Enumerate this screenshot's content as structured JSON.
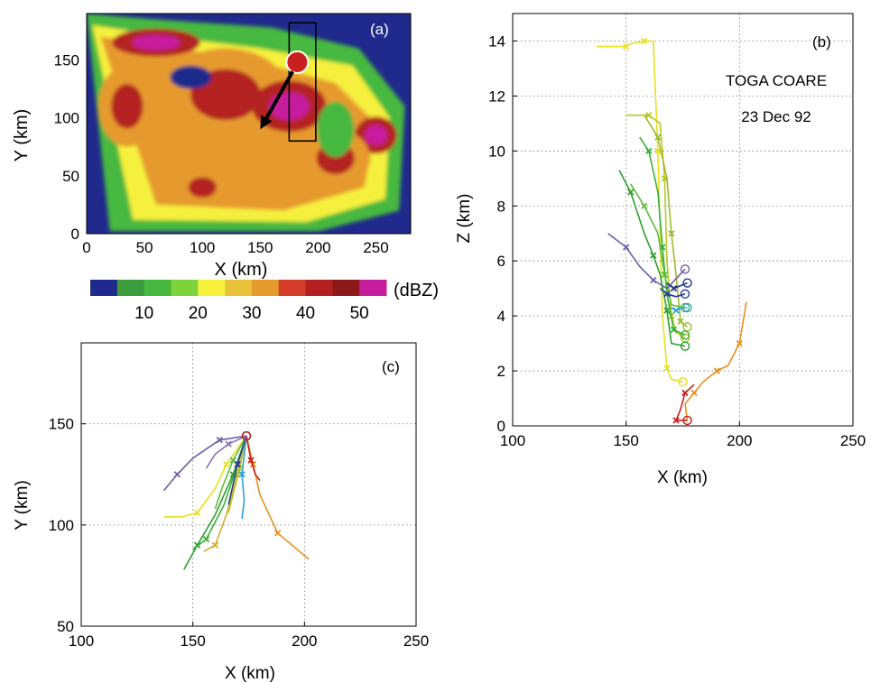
{
  "chart_data": [
    {
      "panel": "(a)",
      "type": "heatmap",
      "xlabel": "X (km)",
      "ylabel": "Y (km)",
      "xlim": [
        0,
        280
      ],
      "ylim": [
        0,
        190
      ],
      "xticks": [
        0,
        50,
        100,
        150,
        200,
        250
      ],
      "yticks": [
        0,
        50,
        100,
        150
      ],
      "colorbar": {
        "unit": "(dBZ)",
        "ticks": [
          10,
          20,
          30,
          40,
          50
        ],
        "colors": [
          "#1f2a8c",
          "#3d9a3d",
          "#46b83f",
          "#7ed23c",
          "#f5f03c",
          "#e8c33a",
          "#e69a2e",
          "#d23c28",
          "#b42020",
          "#8c1818",
          "#c81e9e"
        ]
      },
      "box": {
        "x0": 175,
        "x1": 198,
        "y0": 80,
        "y1": 182
      },
      "marker": {
        "x": 182,
        "y": 148,
        "color": "#c8201e"
      },
      "arrow": {
        "from": [
          178,
          140
        ],
        "to": [
          150,
          90
        ]
      },
      "cells": [
        {
          "x": 120,
          "y": 120,
          "rx": 55,
          "ry": 40,
          "dbz": 40
        },
        {
          "x": 175,
          "y": 110,
          "rx": 32,
          "ry": 22,
          "dbz": 50
        },
        {
          "x": 60,
          "y": 165,
          "rx": 38,
          "ry": 12,
          "dbz": 50
        },
        {
          "x": 35,
          "y": 110,
          "rx": 25,
          "ry": 35,
          "dbz": 40
        },
        {
          "x": 250,
          "y": 85,
          "rx": 18,
          "ry": 16,
          "dbz": 50
        },
        {
          "x": 215,
          "y": 65,
          "rx": 30,
          "ry": 25,
          "dbz": 40
        },
        {
          "x": 100,
          "y": 40,
          "rx": 22,
          "ry": 16,
          "dbz": 40
        }
      ]
    },
    {
      "panel": "(b)",
      "type": "line",
      "xlabel": "X (km)",
      "ylabel": "Z (km)",
      "xlim": [
        100,
        250
      ],
      "ylim": [
        0,
        15
      ],
      "xticks": [
        100,
        150,
        200,
        250
      ],
      "yticks": [
        0,
        2,
        4,
        6,
        8,
        10,
        12,
        14
      ],
      "grid": true,
      "annotations": [
        "TOGA COARE",
        "23 Dec 92"
      ],
      "series": [
        {
          "color": "#e8e020",
          "points": [
            [
              137,
              13.8
            ],
            [
              150,
              13.8
            ],
            [
              152,
              13.9
            ],
            [
              158,
              14
            ],
            [
              162,
              14
            ],
            [
              164,
              10
            ],
            [
              166,
              4
            ],
            [
              168,
              2.1
            ],
            [
              170,
              1.7
            ],
            [
              175,
              1.6
            ]
          ]
        },
        {
          "color": "#b8c820",
          "points": [
            [
              150,
              11.3
            ],
            [
              160,
              11.3
            ],
            [
              165,
              11.0
            ],
            [
              167,
              9
            ],
            [
              168,
              6
            ],
            [
              170,
              4
            ],
            [
              172,
              3.4
            ],
            [
              176,
              3.2
            ]
          ]
        },
        {
          "color": "#9cbc30",
          "points": [
            [
              158,
              11.3
            ],
            [
              164,
              10.5
            ],
            [
              168,
              9
            ],
            [
              170,
              7
            ],
            [
              172,
              5.5
            ],
            [
              174,
              3.8
            ],
            [
              177,
              3.6
            ]
          ]
        },
        {
          "color": "#2ca02c",
          "points": [
            [
              147,
              9.3
            ],
            [
              152,
              8.5
            ],
            [
              158,
              7
            ],
            [
              162,
              6.2
            ],
            [
              165,
              5.5
            ],
            [
              168,
              4.2
            ],
            [
              170,
              3.0
            ],
            [
              176,
              2.9
            ]
          ]
        },
        {
          "color": "#3ab03a",
          "points": [
            [
              156,
              10.5
            ],
            [
              160,
              10
            ],
            [
              164,
              8.5
            ],
            [
              166,
              6.5
            ],
            [
              168,
              4.8
            ],
            [
              171,
              3.5
            ],
            [
              176,
              3.3
            ]
          ]
        },
        {
          "color": "#5cbc3c",
          "points": [
            [
              152,
              8.8
            ],
            [
              158,
              8.0
            ],
            [
              164,
              7.0
            ],
            [
              167,
              5.5
            ],
            [
              170,
              4.4
            ],
            [
              176,
              4.3
            ]
          ]
        },
        {
          "color": "#6b5fa8",
          "points": [
            [
              142,
              7.0
            ],
            [
              150,
              6.5
            ],
            [
              156,
              5.8
            ],
            [
              162,
              5.3
            ],
            [
              168,
              5.0
            ],
            [
              176,
              5.7
            ]
          ]
        },
        {
          "color": "#2a3a9c",
          "points": [
            [
              165,
              5.0
            ],
            [
              168,
              4.8
            ],
            [
              172,
              4.7
            ],
            [
              176,
              4.8
            ]
          ]
        },
        {
          "color": "#1c3688",
          "points": [
            [
              168,
              5.2
            ],
            [
              171,
              5.0
            ],
            [
              174,
              5.1
            ],
            [
              177,
              5.2
            ]
          ]
        },
        {
          "color": "#30a0d8",
          "points": [
            [
              170,
              4.3
            ],
            [
              172,
              4.2
            ],
            [
              175,
              4.3
            ],
            [
              177,
              4.3
            ]
          ]
        },
        {
          "color": "#e89020",
          "points": [
            [
              203,
              4.5
            ],
            [
              200,
              3.0
            ],
            [
              195,
              2.2
            ],
            [
              190,
              2.0
            ],
            [
              184,
              1.6
            ],
            [
              180,
              1.2
            ],
            [
              176,
              0.8
            ],
            [
              177,
              0.2
            ]
          ]
        },
        {
          "color": "#c82020",
          "points": [
            [
              180,
              1.5
            ],
            [
              176,
              1.2
            ],
            [
              174,
              0.6
            ],
            [
              172,
              0.2
            ],
            [
              177,
              0.2
            ]
          ]
        }
      ]
    },
    {
      "panel": "(c)",
      "type": "line",
      "xlabel": "X (km)",
      "ylabel": "Y (km)",
      "xlim": [
        100,
        250
      ],
      "ylim": [
        50,
        190
      ],
      "xticks": [
        100,
        150,
        200,
        250
      ],
      "yticks": [
        50,
        100,
        150
      ],
      "grid": true,
      "series": [
        {
          "color": "#e8e020",
          "points": [
            [
              174,
              144
            ],
            [
              165,
              130
            ],
            [
              160,
              118
            ],
            [
              152,
              106
            ],
            [
              145,
              104
            ],
            [
              137,
              104
            ]
          ]
        },
        {
          "color": "#e89020",
          "points": [
            [
              174,
              144
            ],
            [
              177,
              130
            ],
            [
              180,
              115
            ],
            [
              188,
              96
            ],
            [
              202,
              83
            ]
          ]
        },
        {
          "color": "#d0b030",
          "points": [
            [
              174,
              144
            ],
            [
              170,
              125
            ],
            [
              165,
              105
            ],
            [
              160,
              90
            ],
            [
              155,
              87
            ]
          ]
        },
        {
          "color": "#2ca02c",
          "points": [
            [
              174,
              144
            ],
            [
              168,
              125
            ],
            [
              160,
              105
            ],
            [
              152,
              90
            ],
            [
              146,
              78
            ]
          ]
        },
        {
          "color": "#3ab03a",
          "points": [
            [
              174,
              144
            ],
            [
              170,
              130
            ],
            [
              164,
              110
            ],
            [
              156,
              93
            ],
            [
              150,
              88
            ]
          ]
        },
        {
          "color": "#5cbc3c",
          "points": [
            [
              174,
              144
            ],
            [
              168,
              132
            ],
            [
              163,
              118
            ],
            [
              160,
              108
            ]
          ]
        },
        {
          "color": "#b8c820",
          "points": [
            [
              174,
              144
            ],
            [
              171,
              128
            ],
            [
              168,
              115
            ],
            [
              166,
              106
            ]
          ]
        },
        {
          "color": "#6b5fa8",
          "points": [
            [
              174,
              144
            ],
            [
              162,
              142
            ],
            [
              150,
              133
            ],
            [
              143,
              125
            ],
            [
              137,
              117
            ]
          ]
        },
        {
          "color": "#8a70b8",
          "points": [
            [
              174,
              144
            ],
            [
              166,
              140
            ],
            [
              160,
              135
            ],
            [
              156,
              128
            ]
          ]
        },
        {
          "color": "#2a3a9c",
          "points": [
            [
              174,
              144
            ],
            [
              170,
              130
            ],
            [
              168,
              120
            ],
            [
              166,
              110
            ]
          ]
        },
        {
          "color": "#30a0d8",
          "points": [
            [
              174,
              144
            ],
            [
              172,
              125
            ],
            [
              173,
              112
            ],
            [
              172,
              103
            ]
          ]
        },
        {
          "color": "#c82020",
          "points": [
            [
              174,
              144
            ],
            [
              176,
              132
            ],
            [
              178,
              125
            ],
            [
              180,
              122
            ]
          ]
        }
      ]
    }
  ]
}
